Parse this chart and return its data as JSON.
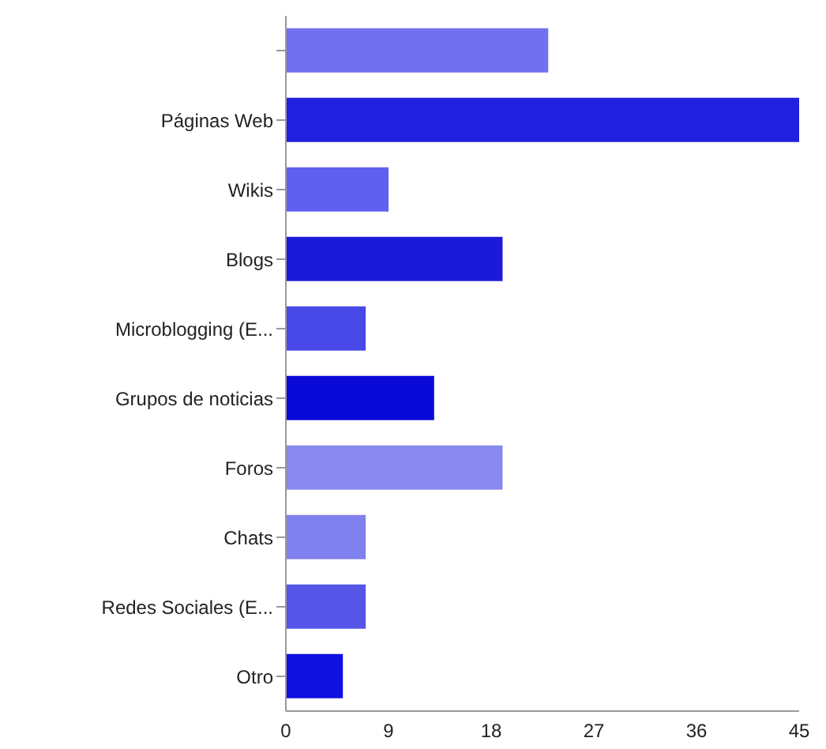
{
  "chart_data": {
    "type": "bar",
    "orientation": "horizontal",
    "categories": [
      null,
      "Páginas Web",
      "Wikis",
      "Blogs",
      "Microblogging (E...",
      "Grupos de noticias",
      "Foros",
      "Chats",
      "Redes Sociales (E...",
      "Otro"
    ],
    "values": [
      23,
      45,
      9,
      19,
      7,
      13,
      19,
      7,
      7,
      5
    ],
    "colors": [
      "#7070f0",
      "#2020e0",
      "#6060f0",
      "#1a1ad8",
      "#4848e8",
      "#0a0ad8",
      "#8888ee",
      "#8080ee",
      "#5555e8",
      "#1010e0"
    ],
    "xlim": [
      0,
      45
    ],
    "xticks": [
      0,
      9,
      18,
      27,
      36,
      45
    ],
    "grid": false,
    "legend": false
  }
}
